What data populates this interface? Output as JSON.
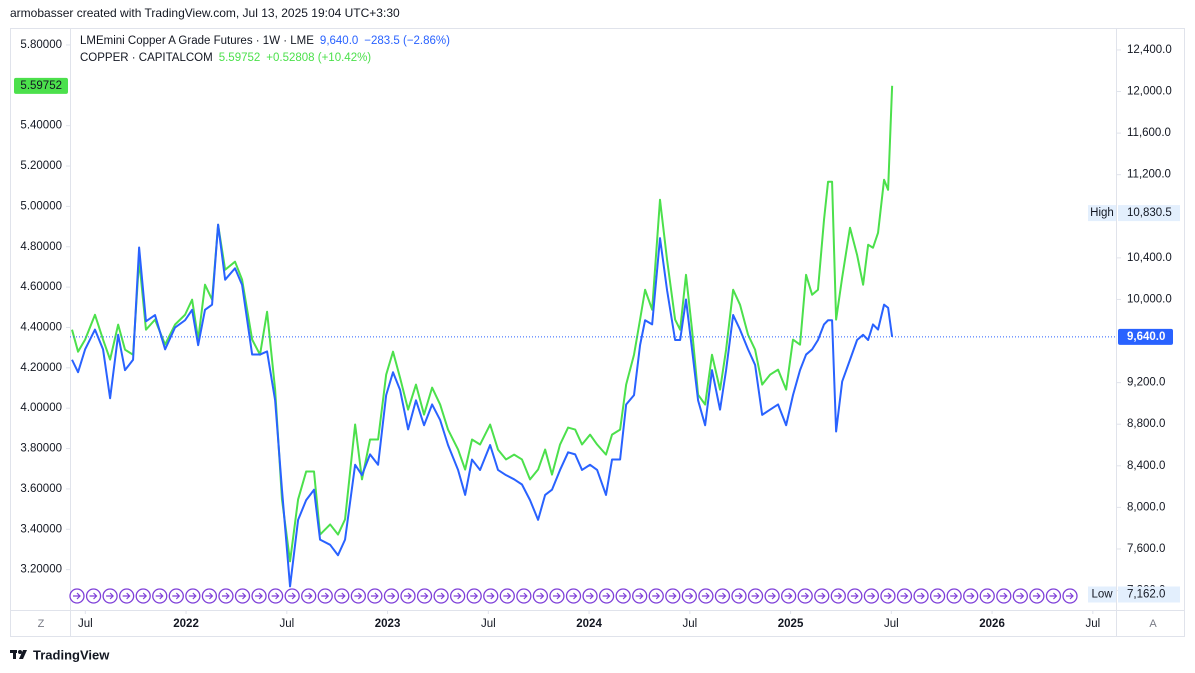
{
  "watermark": "armobasser created with TradingView.com, Jul 13, 2025 19:04 UTC+3:30",
  "footer": "TradingView",
  "buttons": [
    "Z",
    "A"
  ],
  "chart_data": {
    "type": "line",
    "grid": false,
    "x": [
      2021.434,
      2021.464,
      2021.499,
      2021.548,
      2021.588,
      2021.623,
      2021.663,
      2021.697,
      2021.737,
      2021.767,
      2021.801,
      2021.846,
      2021.896,
      2021.945,
      2021.995,
      2022.03,
      2022.06,
      2022.094,
      2022.129,
      2022.159,
      2022.194,
      2022.243,
      2022.278,
      2022.328,
      2022.367,
      2022.402,
      2022.442,
      2022.476,
      2022.516,
      2022.556,
      2022.596,
      2022.635,
      2022.665,
      2022.715,
      2022.754,
      2022.789,
      2022.839,
      2022.873,
      2022.913,
      2022.953,
      2022.993,
      2023.027,
      2023.062,
      2023.102,
      2023.141,
      2023.181,
      2023.221,
      2023.261,
      2023.3,
      2023.35,
      2023.385,
      2023.419,
      2023.459,
      2023.509,
      2023.548,
      2023.588,
      2023.628,
      2023.667,
      2023.707,
      2023.747,
      2023.782,
      2023.816,
      2023.856,
      2023.896,
      2023.931,
      2023.965,
      2024.005,
      2024.04,
      2024.084,
      2024.114,
      2024.154,
      2024.184,
      2024.223,
      2024.253,
      2024.278,
      2024.313,
      2024.352,
      2024.387,
      2024.427,
      2024.452,
      2024.481,
      2024.511,
      2024.541,
      2024.576,
      2024.61,
      2024.65,
      2024.68,
      2024.715,
      2024.749,
      2024.789,
      2024.824,
      2024.859,
      2024.898,
      2024.938,
      2024.978,
      2025.012,
      2025.047,
      2025.077,
      2025.107,
      2025.136,
      2025.166,
      2025.186,
      2025.206,
      2025.226,
      2025.256,
      2025.295,
      2025.33,
      2025.36,
      2025.385,
      2025.409,
      2025.434,
      2025.464,
      2025.484,
      2025.504
    ],
    "xlim": [
      2021.424,
      2026.615
    ],
    "xticks": [
      {
        "value": 2021.5,
        "label": "Jul"
      },
      2022,
      {
        "value": 2022.5,
        "label": "Jul"
      },
      2023,
      {
        "value": 2023.5,
        "label": "Jul"
      },
      2024,
      {
        "value": 2024.5,
        "label": "Jul"
      },
      2025,
      {
        "value": 2025.5,
        "label": "Jul"
      },
      2026,
      {
        "value": 2026.5,
        "label": "Jul"
      }
    ],
    "ylim": [
      3.0,
      5.884
    ],
    "yticks": [
      {
        "value": 3.2,
        "label": "3.20000"
      },
      {
        "value": 3.4,
        "label": "3.40000"
      },
      {
        "value": 3.6,
        "label": "3.60000"
      },
      {
        "value": 3.8,
        "label": "3.80000"
      },
      {
        "value": 4.0,
        "label": "4.00000"
      },
      {
        "value": 4.2,
        "label": "4.20000"
      },
      {
        "value": 4.4,
        "label": "4.40000"
      },
      {
        "value": 4.6,
        "label": "4.60000"
      },
      {
        "value": 4.8,
        "label": "4.80000"
      },
      {
        "value": 5.0,
        "label": "5.00000"
      },
      {
        "value": 5.2,
        "label": "5.20000"
      },
      {
        "value": 5.4,
        "label": "5.40000"
      },
      {
        "value": 5.8,
        "label": "5.80000"
      }
    ],
    "y2lim": [
      7013,
      12611
    ],
    "y2ticks": [
      {
        "value": 7200,
        "label": "7,200.0"
      },
      {
        "value": 7600,
        "label": "7,600.0"
      },
      {
        "value": 8000,
        "label": "8,000.0"
      },
      {
        "value": 8400,
        "label": "8,400.0"
      },
      {
        "value": 8800,
        "label": "8,800.0"
      },
      {
        "value": 9200,
        "label": "9,200.0"
      },
      {
        "value": 10000,
        "label": "10,000.0"
      },
      {
        "value": 10400,
        "label": "10,400.0"
      },
      {
        "value": 11200,
        "label": "11,200.0"
      },
      {
        "value": 11600,
        "label": "11,600.0"
      },
      {
        "value": 12000,
        "label": "12,000.0"
      },
      {
        "value": 12400,
        "label": "12,400.0"
      }
    ],
    "series": [
      {
        "name": "LMEmini Copper A Grade Futures · 1W · LME",
        "price": "9,640.0",
        "change": "−283.5 (−2.86%)",
        "last_label": "9,640.0",
        "color": "#2962ff",
        "axis": "y2",
        "values": [
          9420,
          9300,
          9520,
          9710,
          9520,
          9050,
          9660,
          9320,
          9420,
          10500,
          9790,
          9850,
          9520,
          9730,
          9800,
          9900,
          9560,
          9900,
          9950,
          10720,
          10190,
          10300,
          10140,
          9470,
          9470,
          9500,
          9030,
          8170,
          7240,
          7880,
          8070,
          8170,
          7690,
          7640,
          7540,
          7690,
          8410,
          8310,
          8510,
          8410,
          9080,
          9300,
          9130,
          8750,
          9030,
          8790,
          8990,
          8840,
          8600,
          8360,
          8120,
          8460,
          8360,
          8600,
          8360,
          8310,
          8270,
          8220,
          8070,
          7880,
          8120,
          8170,
          8360,
          8530,
          8510,
          8360,
          8410,
          8360,
          8120,
          8460,
          8460,
          8990,
          9080,
          9560,
          9800,
          9760,
          10590,
          10090,
          9610,
          9610,
          10000,
          9520,
          9030,
          8790,
          9320,
          8940,
          9320,
          9850,
          9710,
          9520,
          9370,
          8890,
          8940,
          8990,
          8790,
          9080,
          9320,
          9470,
          9520,
          9610,
          9760,
          9800,
          9800,
          8730,
          9210,
          9420,
          9610,
          9660,
          9610,
          9760,
          9710,
          9950,
          9920,
          9640
        ]
      },
      {
        "name": "COPPER · CAPITALCOM",
        "price": "5.59752",
        "change": "+0.52808 (+10.42%)",
        "color": "#4ce04c",
        "axis": "y",
        "values": [
          4.389,
          4.28,
          4.34,
          4.463,
          4.34,
          4.241,
          4.414,
          4.29,
          4.265,
          4.736,
          4.389,
          4.439,
          4.315,
          4.414,
          4.463,
          4.538,
          4.34,
          4.612,
          4.538,
          4.909,
          4.686,
          4.726,
          4.637,
          4.34,
          4.265,
          4.478,
          4.092,
          3.548,
          3.241,
          3.548,
          3.686,
          3.686,
          3.374,
          3.424,
          3.374,
          3.449,
          3.919,
          3.647,
          3.845,
          3.845,
          4.166,
          4.28,
          4.151,
          3.993,
          4.117,
          3.968,
          4.102,
          4.018,
          3.894,
          3.795,
          3.696,
          3.845,
          3.82,
          3.919,
          3.795,
          3.746,
          3.77,
          3.746,
          3.647,
          3.696,
          3.795,
          3.671,
          3.82,
          3.904,
          3.894,
          3.82,
          3.869,
          3.82,
          3.77,
          3.869,
          3.894,
          4.117,
          4.265,
          4.439,
          4.587,
          4.488,
          5.033,
          4.736,
          4.439,
          4.389,
          4.661,
          4.389,
          4.067,
          4.018,
          4.265,
          4.092,
          4.29,
          4.587,
          4.513,
          4.364,
          4.29,
          4.117,
          4.166,
          4.191,
          4.092,
          4.34,
          4.315,
          4.661,
          4.562,
          4.587,
          4.934,
          5.122,
          5.122,
          4.439,
          4.647,
          4.894,
          4.76,
          4.612,
          4.81,
          4.795,
          4.869,
          5.132,
          5.082,
          5.59752
        ]
      }
    ],
    "high": {
      "label": "High",
      "value": 10830.5,
      "value_label": "10,830.5"
    },
    "low": {
      "label": "Low",
      "value": 7162,
      "value_label": "7,162.0"
    }
  }
}
